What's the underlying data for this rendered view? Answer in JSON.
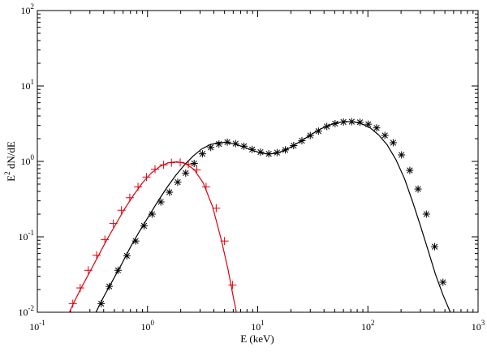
{
  "chart_data": {
    "type": "scatter",
    "title": "",
    "xlabel": "E (keV)",
    "ylabel_base": "E",
    "ylabel_sup": "2",
    "ylabel_rest": " dN/dE",
    "xscale": "log",
    "yscale": "log",
    "xlim": [
      0.1,
      1000
    ],
    "ylim": [
      0.01,
      100
    ],
    "grid": false,
    "x_ticks": [
      {
        "base": "10",
        "exp": "-1",
        "value": 0.1
      },
      {
        "base": "10",
        "exp": "0",
        "value": 1
      },
      {
        "base": "10",
        "exp": "1",
        "value": 10
      },
      {
        "base": "10",
        "exp": "2",
        "value": 100
      },
      {
        "base": "10",
        "exp": "3",
        "value": 1000
      }
    ],
    "y_ticks": [
      {
        "base": "10",
        "exp": "-2",
        "value": 0.01
      },
      {
        "base": "10",
        "exp": "-1",
        "value": 0.1
      },
      {
        "base": "10",
        "exp": "0",
        "value": 1
      },
      {
        "base": "10",
        "exp": "1",
        "value": 10
      },
      {
        "base": "10",
        "exp": "2",
        "value": 100
      }
    ],
    "series": [
      {
        "color": "#e0000f",
        "marker": "plus",
        "curve": [
          [
            0.195,
            0.01
          ],
          [
            0.22,
            0.0145
          ],
          [
            0.25,
            0.021
          ],
          [
            0.3,
            0.0345
          ],
          [
            0.36,
            0.057
          ],
          [
            0.43,
            0.093
          ],
          [
            0.52,
            0.15
          ],
          [
            0.62,
            0.235
          ],
          [
            0.75,
            0.36
          ],
          [
            0.9,
            0.52
          ],
          [
            1.08,
            0.7
          ],
          [
            1.3,
            0.86
          ],
          [
            1.55,
            0.96
          ],
          [
            1.85,
            0.99
          ],
          [
            2.2,
            0.94
          ],
          [
            2.65,
            0.78
          ],
          [
            3.2,
            0.52
          ],
          [
            3.9,
            0.25
          ],
          [
            4.7,
            0.088
          ],
          [
            5.4,
            0.036
          ],
          [
            6.0,
            0.016
          ],
          [
            6.4,
            0.01
          ]
        ],
        "points": [
          [
            0.21,
            0.013
          ],
          [
            0.245,
            0.021
          ],
          [
            0.29,
            0.036
          ],
          [
            0.345,
            0.057
          ],
          [
            0.41,
            0.092
          ],
          [
            0.49,
            0.15
          ],
          [
            0.58,
            0.225
          ],
          [
            0.69,
            0.33
          ],
          [
            0.82,
            0.46
          ],
          [
            0.98,
            0.62
          ],
          [
            1.17,
            0.79
          ],
          [
            1.4,
            0.9
          ],
          [
            1.65,
            0.96
          ],
          [
            1.98,
            0.97
          ],
          [
            2.35,
            0.92
          ],
          [
            2.8,
            0.77
          ],
          [
            3.4,
            0.46
          ],
          [
            4.2,
            0.24
          ],
          [
            5.0,
            0.088
          ],
          [
            5.9,
            0.023
          ]
        ]
      },
      {
        "color": "#000000",
        "marker": "star",
        "curve": [
          [
            0.34,
            0.01
          ],
          [
            0.4,
            0.016
          ],
          [
            0.48,
            0.026
          ],
          [
            0.58,
            0.043
          ],
          [
            0.7,
            0.073
          ],
          [
            0.85,
            0.12
          ],
          [
            1.03,
            0.19
          ],
          [
            1.25,
            0.3
          ],
          [
            1.5,
            0.45
          ],
          [
            1.8,
            0.65
          ],
          [
            2.15,
            0.89
          ],
          [
            2.6,
            1.18
          ],
          [
            3.1,
            1.46
          ],
          [
            3.7,
            1.67
          ],
          [
            4.4,
            1.78
          ],
          [
            5.2,
            1.78
          ],
          [
            6.2,
            1.7
          ],
          [
            7.4,
            1.56
          ],
          [
            8.8,
            1.42
          ],
          [
            10.5,
            1.3
          ],
          [
            12.5,
            1.25
          ],
          [
            15.0,
            1.29
          ],
          [
            18.0,
            1.42
          ],
          [
            21.5,
            1.65
          ],
          [
            26.0,
            1.95
          ],
          [
            31.0,
            2.3
          ],
          [
            37.0,
            2.68
          ],
          [
            44.0,
            3.0
          ],
          [
            52.0,
            3.25
          ],
          [
            62.0,
            3.38
          ],
          [
            74.0,
            3.35
          ],
          [
            88.0,
            3.15
          ],
          [
            105,
            2.78
          ],
          [
            125,
            2.25
          ],
          [
            150,
            1.65
          ],
          [
            180,
            1.05
          ],
          [
            215,
            0.59
          ],
          [
            255,
            0.29
          ],
          [
            300,
            0.14
          ],
          [
            350,
            0.068
          ],
          [
            410,
            0.032
          ],
          [
            480,
            0.017
          ],
          [
            560,
            0.01
          ]
        ],
        "points": [
          [
            0.38,
            0.013
          ],
          [
            0.45,
            0.022
          ],
          [
            0.54,
            0.036
          ],
          [
            0.65,
            0.056
          ],
          [
            0.78,
            0.088
          ],
          [
            0.93,
            0.14
          ],
          [
            1.1,
            0.2
          ],
          [
            1.32,
            0.29
          ],
          [
            1.58,
            0.39
          ],
          [
            1.88,
            0.53
          ],
          [
            2.22,
            0.7
          ],
          [
            2.65,
            0.94
          ],
          [
            3.15,
            1.26
          ],
          [
            3.75,
            1.53
          ],
          [
            4.45,
            1.7
          ],
          [
            5.3,
            1.8
          ],
          [
            6.3,
            1.72
          ],
          [
            7.5,
            1.59
          ],
          [
            8.9,
            1.44
          ],
          [
            10.6,
            1.33
          ],
          [
            12.6,
            1.26
          ],
          [
            15.0,
            1.31
          ],
          [
            17.8,
            1.42
          ],
          [
            21.2,
            1.62
          ],
          [
            25.2,
            1.88
          ],
          [
            30.0,
            2.2
          ],
          [
            35.6,
            2.52
          ],
          [
            42.4,
            2.9
          ],
          [
            50.4,
            3.17
          ],
          [
            60.0,
            3.33
          ],
          [
            71.3,
            3.36
          ],
          [
            84.8,
            3.3
          ],
          [
            100.9,
            3.11
          ],
          [
            120,
            2.78
          ],
          [
            142.7,
            2.21
          ],
          [
            169.7,
            1.77
          ],
          [
            201.9,
            1.22
          ],
          [
            240,
            0.76
          ],
          [
            285.4,
            0.43
          ],
          [
            339.5,
            0.2
          ],
          [
            403.7,
            0.074
          ],
          [
            480.1,
            0.025
          ]
        ]
      }
    ]
  }
}
